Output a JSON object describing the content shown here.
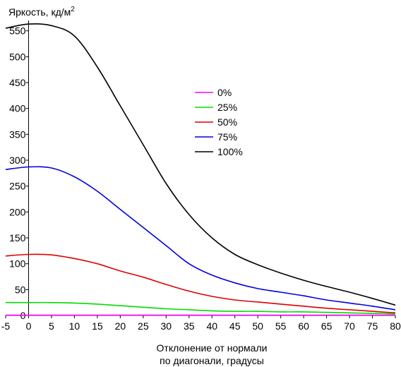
{
  "chart_data": {
    "type": "line",
    "ylabel": "Яркость, кд/м",
    "ylabel_superscript": "2",
    "xlabel_line1": "Отклонение от нормали",
    "xlabel_line2": "по диагонали, градусы",
    "xlim": [
      -5,
      80
    ],
    "ylim": [
      0,
      570
    ],
    "x_ticks": [
      -5,
      0,
      5,
      10,
      15,
      20,
      25,
      30,
      35,
      40,
      45,
      50,
      55,
      60,
      65,
      70,
      75,
      80
    ],
    "y_ticks": [
      0,
      50,
      100,
      150,
      200,
      250,
      300,
      350,
      400,
      450,
      500,
      550
    ],
    "grid": false,
    "legend_position": "center-right",
    "x": [
      -5,
      0,
      5,
      10,
      15,
      20,
      25,
      30,
      35,
      40,
      45,
      50,
      55,
      60,
      65,
      70,
      75,
      80
    ],
    "series": [
      {
        "name": "0%",
        "color": "#ff00ff",
        "values": [
          0.5,
          0.5,
          0.5,
          0.5,
          0.5,
          0.5,
          0.5,
          0.5,
          0.5,
          0.5,
          0.5,
          0.5,
          0.5,
          0.5,
          0.5,
          0.5,
          0.5,
          0.5
        ]
      },
      {
        "name": "25%",
        "color": "#00dd00",
        "values": [
          25,
          25,
          25,
          24,
          22,
          19,
          16,
          13,
          11,
          9,
          8,
          8,
          7,
          7,
          6,
          5,
          4,
          3
        ]
      },
      {
        "name": "50%",
        "color": "#dd0000",
        "values": [
          115,
          118,
          117,
          110,
          100,
          86,
          74,
          60,
          47,
          37,
          30,
          26,
          22,
          18,
          14,
          11,
          8,
          5
        ]
      },
      {
        "name": "75%",
        "color": "#0000dd",
        "values": [
          282,
          287,
          285,
          268,
          240,
          205,
          170,
          135,
          100,
          78,
          63,
          52,
          45,
          38,
          30,
          24,
          18,
          11
        ]
      },
      {
        "name": "100%",
        "color": "#000000",
        "values": [
          555,
          563,
          560,
          540,
          480,
          405,
          330,
          255,
          195,
          150,
          118,
          98,
          82,
          68,
          56,
          45,
          33,
          20
        ]
      }
    ]
  }
}
